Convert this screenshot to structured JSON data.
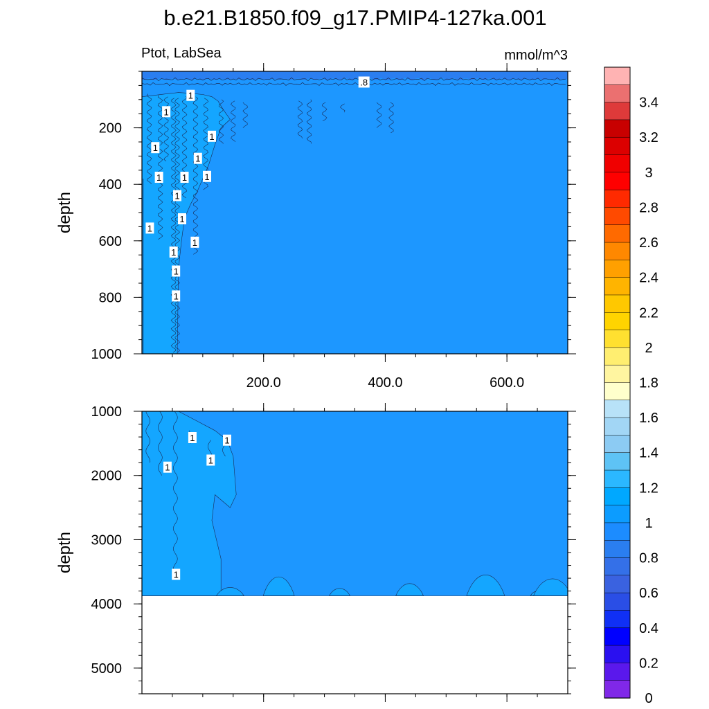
{
  "title": "b.e21.B1850.f09_g17.PMIP4-127ka.001",
  "left_label": "Ptot, LabSea",
  "right_label": "mmol/m^3",
  "chart_data": [
    {
      "type": "heatmap",
      "panel": "upper",
      "ylabel": "depth",
      "ylim": [
        0,
        1000
      ],
      "y_reversed": true,
      "xlim": [
        0,
        700
      ],
      "yticks": [
        200,
        400,
        600,
        800,
        1000
      ],
      "ytick_labels": [
        "200",
        "400",
        "600",
        "800",
        "1000"
      ],
      "xticks": [
        200,
        400,
        600
      ],
      "xtick_labels": [
        "200.0",
        "400.0",
        "600.0"
      ],
      "base_fill_value": 0.95,
      "regions": [
        {
          "value": 0.8,
          "color": "#2b7ef0",
          "description_x_range": [
            0,
            700
          ],
          "y_range": [
            0,
            45
          ]
        },
        {
          "value": 1.05,
          "color": "#13a6ff",
          "x_range": [
            0,
            130
          ],
          "y_range": [
            90,
            1000
          ]
        }
      ],
      "contour_labels": [
        {
          "text": ".8",
          "x": 365,
          "y": 38
        },
        {
          "text": "1",
          "x": 80,
          "y": 85
        },
        {
          "text": "1",
          "x": 40,
          "y": 143
        },
        {
          "text": "1",
          "x": 115,
          "y": 230
        },
        {
          "text": "1",
          "x": 22,
          "y": 270
        },
        {
          "text": "1",
          "x": 92,
          "y": 308
        },
        {
          "text": "1",
          "x": 28,
          "y": 375
        },
        {
          "text": "1",
          "x": 70,
          "y": 375
        },
        {
          "text": "1",
          "x": 107,
          "y": 372
        },
        {
          "text": "1",
          "x": 58,
          "y": 440
        },
        {
          "text": "1",
          "x": 66,
          "y": 522
        },
        {
          "text": "1",
          "x": 13,
          "y": 555
        },
        {
          "text": "1",
          "x": 87,
          "y": 605
        },
        {
          "text": "1",
          "x": 52,
          "y": 640
        },
        {
          "text": "1",
          "x": 56,
          "y": 707
        },
        {
          "text": "1",
          "x": 56,
          "y": 795
        }
      ]
    },
    {
      "type": "heatmap",
      "panel": "lower",
      "ylabel": "depth",
      "ylim": [
        1000,
        5400
      ],
      "y_reversed": true,
      "xlim": [
        0,
        700
      ],
      "yticks": [
        1000,
        2000,
        3000,
        4000,
        5000
      ],
      "ytick_labels": [
        "1000",
        "2000",
        "3000",
        "4000",
        "5000"
      ],
      "xticks": [
        200,
        400,
        600
      ],
      "xtick_labels": [],
      "base_fill_value": 0.95,
      "ocean_floor_depth": 3875,
      "contour_labels": [
        {
          "text": "1",
          "x": 83,
          "y": 1410
        },
        {
          "text": "1",
          "x": 140,
          "y": 1450
        },
        {
          "text": "1",
          "x": 113,
          "y": 1760
        },
        {
          "text": "1",
          "x": 42,
          "y": 1870
        },
        {
          "text": "1",
          "x": 56,
          "y": 3540
        }
      ]
    }
  ],
  "colorbar": {
    "labels": [
      "3.4",
      "3.2",
      "3",
      "2.8",
      "2.6",
      "2.4",
      "2.2",
      "2",
      "1.8",
      "1.6",
      "1.4",
      "1.2",
      "1",
      "0.8",
      "0.6",
      "0.4",
      "0.2",
      "0"
    ],
    "colors_top_to_bottom": [
      "#ffb3b3",
      "#eb7070",
      "#de3a3a",
      "#c80000",
      "#dc0000",
      "#f00000",
      "#ff0000",
      "#ff2a00",
      "#ff4a00",
      "#ff6a00",
      "#ff8800",
      "#ffa000",
      "#ffb400",
      "#ffc800",
      "#ffd400",
      "#ffe030",
      "#ffee70",
      "#fff5a0",
      "#ffffcc",
      "#b8e2f8",
      "#a2d6f5",
      "#8ccbf3",
      "#5ec3f5",
      "#2bb8ff",
      "#00a8ff",
      "#0c9cff",
      "#1c8cff",
      "#2a7ef0",
      "#3470e8",
      "#3a62e0",
      "#2a4ee6",
      "#1030f5",
      "#0000ff",
      "#2a10f0",
      "#5a18ec",
      "#8028e8"
    ]
  }
}
